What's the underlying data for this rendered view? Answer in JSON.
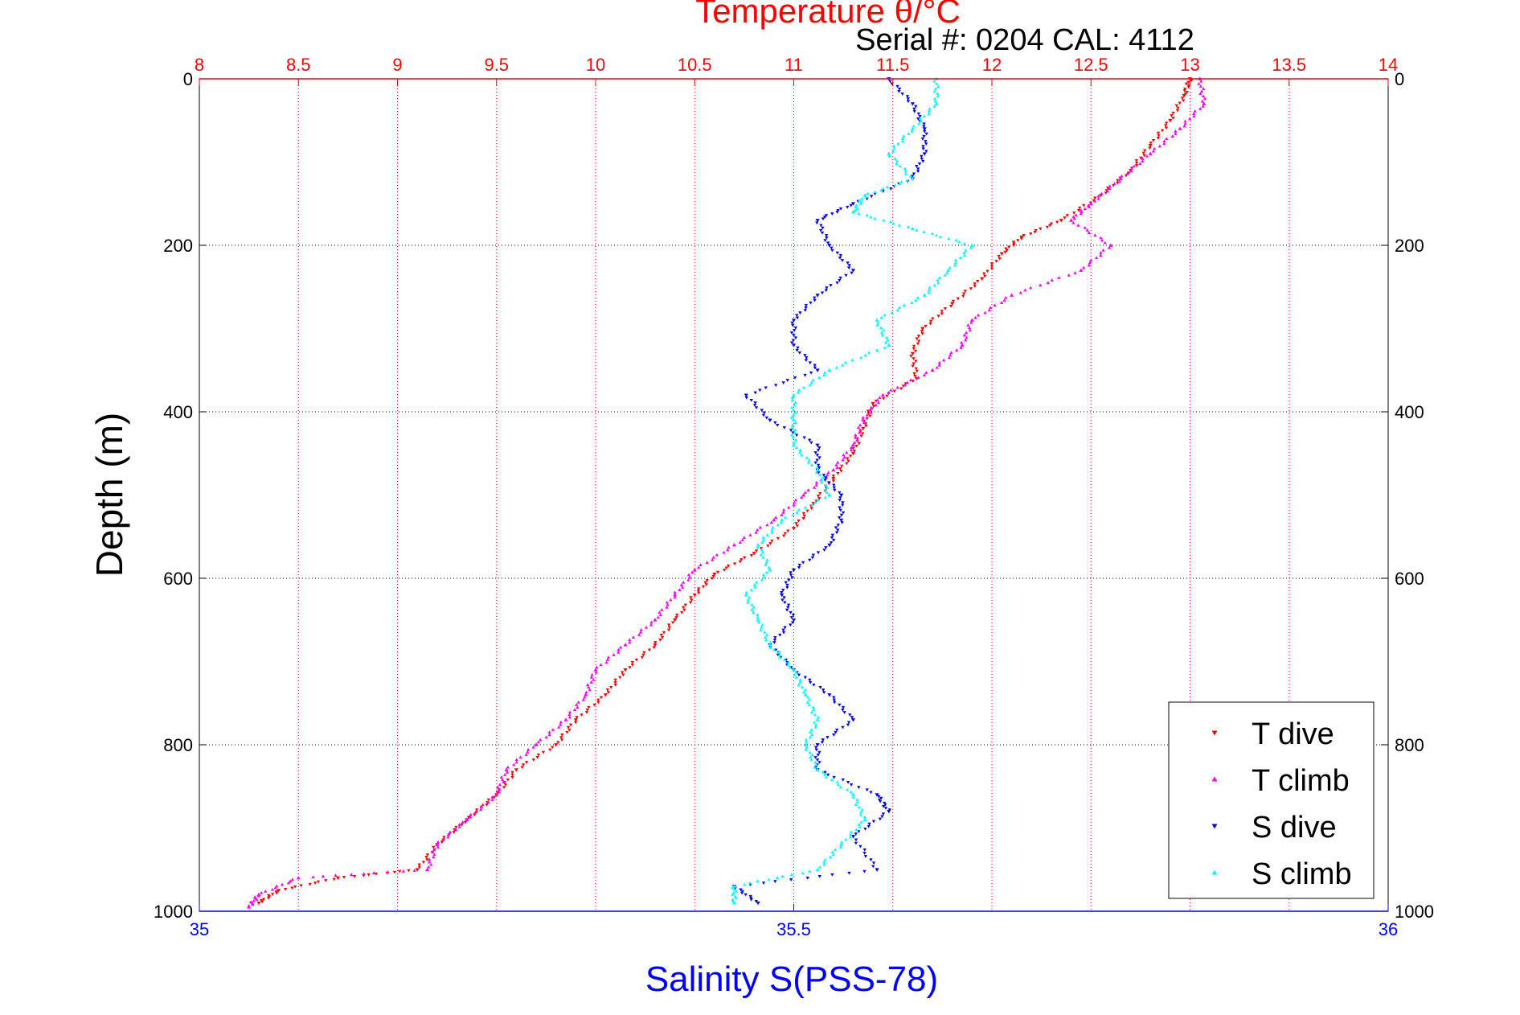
{
  "chart_data": {
    "type": "scatter",
    "title": "Temperature θ/°C",
    "subtitle": "Serial #: 0204  CAL: 4112",
    "ylabel": "Depth (m)",
    "xlabel": "Salinity S(PSS-78)",
    "ylim": [
      0,
      1000
    ],
    "y_reversed": true,
    "y_ticks": [
      0,
      200,
      400,
      600,
      800,
      1000
    ],
    "x_top": {
      "label": "Temperature θ/°C",
      "lim": [
        8,
        14
      ],
      "ticks": [
        8,
        8.5,
        9,
        9.5,
        10,
        10.5,
        11,
        11.5,
        12,
        12.5,
        13,
        13.5,
        14
      ],
      "color": "#ff0000"
    },
    "x_bottom": {
      "label": "Salinity S(PSS-78)",
      "lim": [
        35,
        36
      ],
      "ticks": [
        35,
        35.5,
        36
      ],
      "color": "#0000ff"
    },
    "grid": true,
    "legend_position": "bottom-right",
    "series": [
      {
        "name": "T dive",
        "axis": "top",
        "color": "#ff0000",
        "marker": "triangle-down",
        "points": [
          [
            13.0,
            0
          ],
          [
            12.97,
            20
          ],
          [
            12.9,
            50
          ],
          [
            12.8,
            80
          ],
          [
            12.7,
            110
          ],
          [
            12.55,
            140
          ],
          [
            12.35,
            170
          ],
          [
            12.15,
            190
          ],
          [
            12.05,
            210
          ],
          [
            11.95,
            240
          ],
          [
            11.8,
            270
          ],
          [
            11.65,
            300
          ],
          [
            11.6,
            330
          ],
          [
            11.62,
            360
          ],
          [
            11.4,
            390
          ],
          [
            11.35,
            420
          ],
          [
            11.3,
            450
          ],
          [
            11.2,
            480
          ],
          [
            11.1,
            510
          ],
          [
            11.0,
            540
          ],
          [
            10.8,
            570
          ],
          [
            10.6,
            595
          ],
          [
            10.5,
            620
          ],
          [
            10.4,
            650
          ],
          [
            10.3,
            680
          ],
          [
            10.15,
            710
          ],
          [
            10.05,
            740
          ],
          [
            9.9,
            770
          ],
          [
            9.8,
            800
          ],
          [
            9.6,
            830
          ],
          [
            9.5,
            860
          ],
          [
            9.35,
            890
          ],
          [
            9.2,
            920
          ],
          [
            9.1,
            950
          ],
          [
            8.7,
            960
          ],
          [
            8.4,
            975
          ],
          [
            8.3,
            990
          ]
        ]
      },
      {
        "name": "T climb",
        "axis": "top",
        "color": "#ff00ff",
        "marker": "triangle-up",
        "points": [
          [
            13.05,
            0
          ],
          [
            13.07,
            30
          ],
          [
            12.95,
            60
          ],
          [
            12.8,
            90
          ],
          [
            12.65,
            120
          ],
          [
            12.5,
            150
          ],
          [
            12.4,
            170
          ],
          [
            12.6,
            200
          ],
          [
            12.45,
            230
          ],
          [
            12.1,
            260
          ],
          [
            11.9,
            290
          ],
          [
            11.85,
            320
          ],
          [
            11.7,
            350
          ],
          [
            11.45,
            380
          ],
          [
            11.35,
            410
          ],
          [
            11.3,
            440
          ],
          [
            11.2,
            470
          ],
          [
            11.05,
            500
          ],
          [
            10.9,
            530
          ],
          [
            10.7,
            560
          ],
          [
            10.5,
            590
          ],
          [
            10.4,
            620
          ],
          [
            10.3,
            650
          ],
          [
            10.15,
            680
          ],
          [
            10.0,
            710
          ],
          [
            9.95,
            740
          ],
          [
            9.85,
            770
          ],
          [
            9.7,
            800
          ],
          [
            9.55,
            830
          ],
          [
            9.5,
            860
          ],
          [
            9.35,
            890
          ],
          [
            9.2,
            920
          ],
          [
            9.15,
            950
          ],
          [
            8.5,
            960
          ],
          [
            8.3,
            980
          ],
          [
            8.25,
            995
          ]
        ]
      },
      {
        "name": "S dive",
        "axis": "bottom",
        "color": "#0000ff",
        "marker": "triangle-down",
        "points": [
          [
            35.58,
            0
          ],
          [
            35.6,
            30
          ],
          [
            35.61,
            60
          ],
          [
            35.61,
            90
          ],
          [
            35.6,
            120
          ],
          [
            35.55,
            150
          ],
          [
            35.52,
            170
          ],
          [
            35.53,
            200
          ],
          [
            35.55,
            230
          ],
          [
            35.52,
            260
          ],
          [
            35.5,
            290
          ],
          [
            35.5,
            320
          ],
          [
            35.52,
            350
          ],
          [
            35.46,
            380
          ],
          [
            35.48,
            410
          ],
          [
            35.52,
            440
          ],
          [
            35.52,
            470
          ],
          [
            35.54,
            500
          ],
          [
            35.54,
            530
          ],
          [
            35.53,
            560
          ],
          [
            35.5,
            590
          ],
          [
            35.49,
            620
          ],
          [
            35.5,
            650
          ],
          [
            35.48,
            680
          ],
          [
            35.5,
            710
          ],
          [
            35.53,
            740
          ],
          [
            35.55,
            770
          ],
          [
            35.52,
            800
          ],
          [
            35.52,
            830
          ],
          [
            35.57,
            860
          ],
          [
            35.58,
            880
          ],
          [
            35.55,
            910
          ],
          [
            35.57,
            950
          ],
          [
            35.45,
            970
          ],
          [
            35.47,
            990
          ]
        ]
      },
      {
        "name": "S climb",
        "axis": "bottom",
        "color": "#00ffff",
        "marker": "triangle-up",
        "points": [
          [
            35.62,
            0
          ],
          [
            35.62,
            30
          ],
          [
            35.6,
            60
          ],
          [
            35.58,
            90
          ],
          [
            35.6,
            120
          ],
          [
            35.56,
            140
          ],
          [
            35.55,
            160
          ],
          [
            35.6,
            180
          ],
          [
            35.65,
            200
          ],
          [
            35.63,
            230
          ],
          [
            35.61,
            260
          ],
          [
            35.57,
            290
          ],
          [
            35.58,
            320
          ],
          [
            35.53,
            350
          ],
          [
            35.5,
            380
          ],
          [
            35.5,
            410
          ],
          [
            35.5,
            440
          ],
          [
            35.52,
            470
          ],
          [
            35.53,
            500
          ],
          [
            35.49,
            530
          ],
          [
            35.47,
            560
          ],
          [
            35.48,
            590
          ],
          [
            35.46,
            620
          ],
          [
            35.47,
            650
          ],
          [
            35.48,
            680
          ],
          [
            35.5,
            710
          ],
          [
            35.51,
            740
          ],
          [
            35.52,
            770
          ],
          [
            35.51,
            800
          ],
          [
            35.52,
            830
          ],
          [
            35.55,
            860
          ],
          [
            35.56,
            890
          ],
          [
            35.54,
            920
          ],
          [
            35.52,
            950
          ],
          [
            35.45,
            970
          ],
          [
            35.45,
            990
          ]
        ]
      }
    ]
  }
}
